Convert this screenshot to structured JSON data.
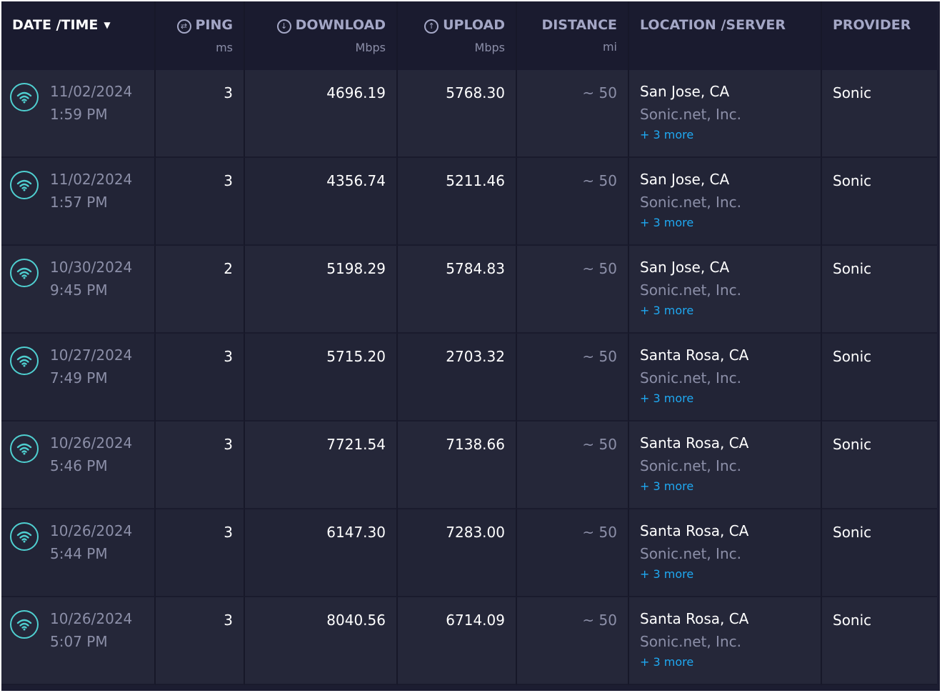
{
  "header": {
    "date_time": "DATE /TIME",
    "ping": "PING",
    "ping_unit": "ms",
    "download": "DOWNLOAD",
    "download_unit": "Mbps",
    "upload": "UPLOAD",
    "upload_unit": "Mbps",
    "distance": "DISTANCE",
    "distance_unit": "mi",
    "location": "LOCATION /SERVER",
    "provider": "PROVIDER"
  },
  "colors": {
    "accent": "#4fcfd0",
    "link": "#1fa9f2",
    "background": "#1c1d31"
  },
  "icons": {
    "row_icon": "wifi-icon",
    "ping": "ping-icon",
    "download": "download-icon",
    "upload": "upload-icon",
    "sort": "caret-down-icon"
  },
  "rows": [
    {
      "date": "11/02/2024",
      "time": "1:59 PM",
      "ping": "3",
      "download": "4696.19",
      "upload": "5768.30",
      "distance": "~ 50",
      "city": "San Jose, CA",
      "server": "Sonic.net, Inc.",
      "more": "+ 3 more",
      "provider": "Sonic"
    },
    {
      "date": "11/02/2024",
      "time": "1:57 PM",
      "ping": "3",
      "download": "4356.74",
      "upload": "5211.46",
      "distance": "~ 50",
      "city": "San Jose, CA",
      "server": "Sonic.net, Inc.",
      "more": "+ 3 more",
      "provider": "Sonic"
    },
    {
      "date": "10/30/2024",
      "time": "9:45 PM",
      "ping": "2",
      "download": "5198.29",
      "upload": "5784.83",
      "distance": "~ 50",
      "city": "San Jose, CA",
      "server": "Sonic.net, Inc.",
      "more": "+ 3 more",
      "provider": "Sonic"
    },
    {
      "date": "10/27/2024",
      "time": "7:49 PM",
      "ping": "3",
      "download": "5715.20",
      "upload": "2703.32",
      "distance": "~ 50",
      "city": "Santa Rosa, CA",
      "server": "Sonic.net, Inc.",
      "more": "+ 3 more",
      "provider": "Sonic"
    },
    {
      "date": "10/26/2024",
      "time": "5:46 PM",
      "ping": "3",
      "download": "7721.54",
      "upload": "7138.66",
      "distance": "~ 50",
      "city": "Santa Rosa, CA",
      "server": "Sonic.net, Inc.",
      "more": "+ 3 more",
      "provider": "Sonic"
    },
    {
      "date": "10/26/2024",
      "time": "5:44 PM",
      "ping": "3",
      "download": "6147.30",
      "upload": "7283.00",
      "distance": "~ 50",
      "city": "Santa Rosa, CA",
      "server": "Sonic.net, Inc.",
      "more": "+ 3 more",
      "provider": "Sonic"
    },
    {
      "date": "10/26/2024",
      "time": "5:07 PM",
      "ping": "3",
      "download": "8040.56",
      "upload": "6714.09",
      "distance": "~ 50",
      "city": "Santa Rosa, CA",
      "server": "Sonic.net, Inc.",
      "more": "+ 3 more",
      "provider": "Sonic"
    }
  ]
}
